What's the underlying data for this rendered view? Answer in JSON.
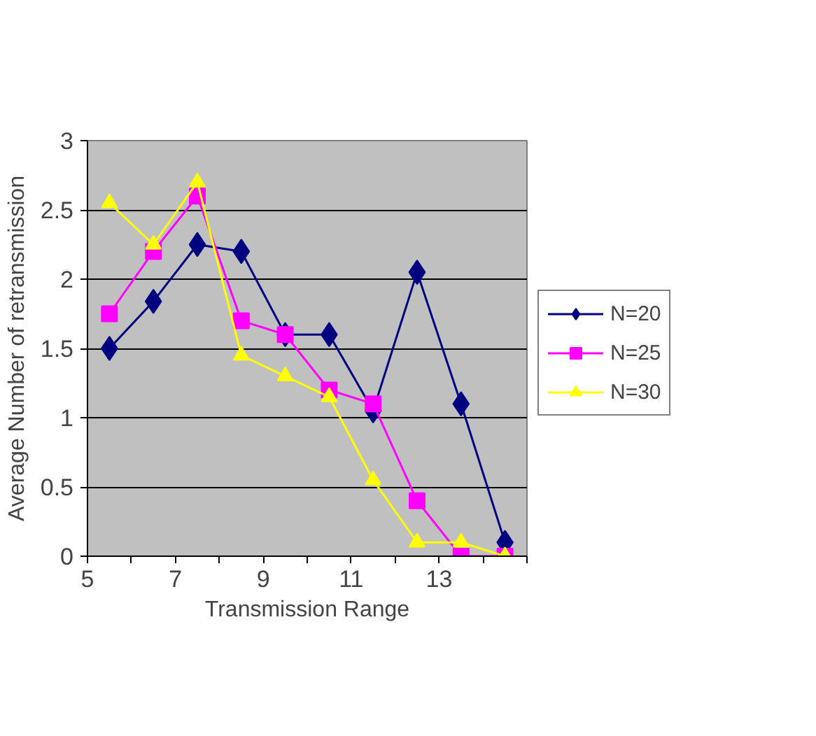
{
  "chart_data": {
    "type": "line",
    "xlabel": "Transmission Range",
    "ylabel": "Average Number of retransmission",
    "x": [
      5.5,
      6.5,
      7.5,
      8.5,
      9.5,
      10.5,
      11.5,
      12.5,
      13.5,
      14.5
    ],
    "series": [
      {
        "name": "N=20",
        "color": "#000080",
        "marker": "diamond",
        "values": [
          1.5,
          1.84,
          2.25,
          2.2,
          1.6,
          1.6,
          1.05,
          2.05,
          1.1,
          0.1
        ]
      },
      {
        "name": "N=25",
        "color": "#ff00ff",
        "marker": "square",
        "values": [
          1.75,
          2.2,
          2.6,
          1.7,
          1.6,
          1.2,
          1.1,
          0.4,
          0,
          0
        ]
      },
      {
        "name": "N=30",
        "color": "#ffff00",
        "marker": "triangle",
        "values": [
          2.55,
          2.25,
          2.7,
          1.45,
          1.3,
          1.15,
          0.55,
          0.1,
          0.1,
          0
        ]
      }
    ],
    "xlim": [
      5,
      15
    ],
    "xticks": [
      5,
      {
        "value": 6,
        "label": null
      },
      7,
      {
        "value": 8,
        "label": null
      },
      9,
      {
        "value": 10,
        "label": null
      },
      11,
      {
        "value": 12,
        "label": null
      },
      13,
      {
        "value": 14,
        "label": null
      },
      {
        "value": 15,
        "label": null
      }
    ],
    "ylim": [
      0,
      3
    ],
    "yticks": [
      0,
      0.5,
      1,
      1.5,
      2,
      2.5,
      3
    ],
    "grid": "y",
    "legend": "right",
    "line_style": "solid"
  }
}
